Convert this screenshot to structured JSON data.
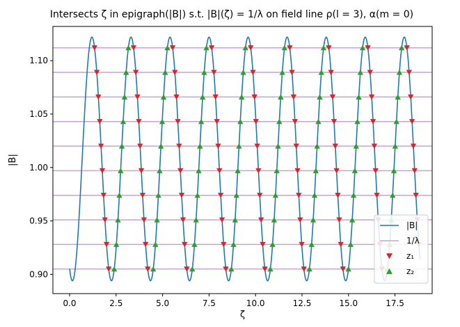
{
  "chart_data": {
    "type": "line",
    "title": "Intersects ζ in epigraph(|B|) s.t. |B|(ζ) = 1/λ on field line ρ(l = 3), α(m = 0)",
    "xlabel": "ζ",
    "ylabel": "|B|",
    "xlim": [
      -0.9,
      19.5
    ],
    "ylim": [
      0.882,
      1.132
    ],
    "xticks": [
      0.0,
      2.5,
      5.0,
      7.5,
      10.0,
      12.5,
      15.0,
      17.5
    ],
    "xtick_labels": [
      "0.0",
      "2.5",
      "5.0",
      "7.5",
      "10.0",
      "12.5",
      "15.0",
      "17.5"
    ],
    "yticks": [
      0.9,
      0.95,
      1.0,
      1.05,
      1.1
    ],
    "ytick_labels": [
      "0.90",
      "0.95",
      "1.00",
      "1.05",
      "1.10"
    ],
    "grid": false,
    "legend_position": "lower-right",
    "field": {
      "x_range": [
        0.0,
        18.85
      ],
      "b_min": 0.894,
      "b_max": 1.122,
      "period": 2.1,
      "first_max_at": 1.2
    },
    "inverse_lambda_levels": [
      0.905,
      0.928,
      0.951,
      0.974,
      0.997,
      1.02,
      1.043,
      1.066,
      1.089,
      1.112
    ],
    "series": [
      {
        "name": "|B|",
        "kind": "line",
        "color": "#1f77b4"
      },
      {
        "name": "1/λ",
        "kind": "hline",
        "color": "#c5a3d6"
      },
      {
        "name": "z₁",
        "kind": "marker-down",
        "color": "#d62728"
      },
      {
        "name": "z₂",
        "kind": "marker-up",
        "color": "#2ca02c"
      }
    ]
  }
}
